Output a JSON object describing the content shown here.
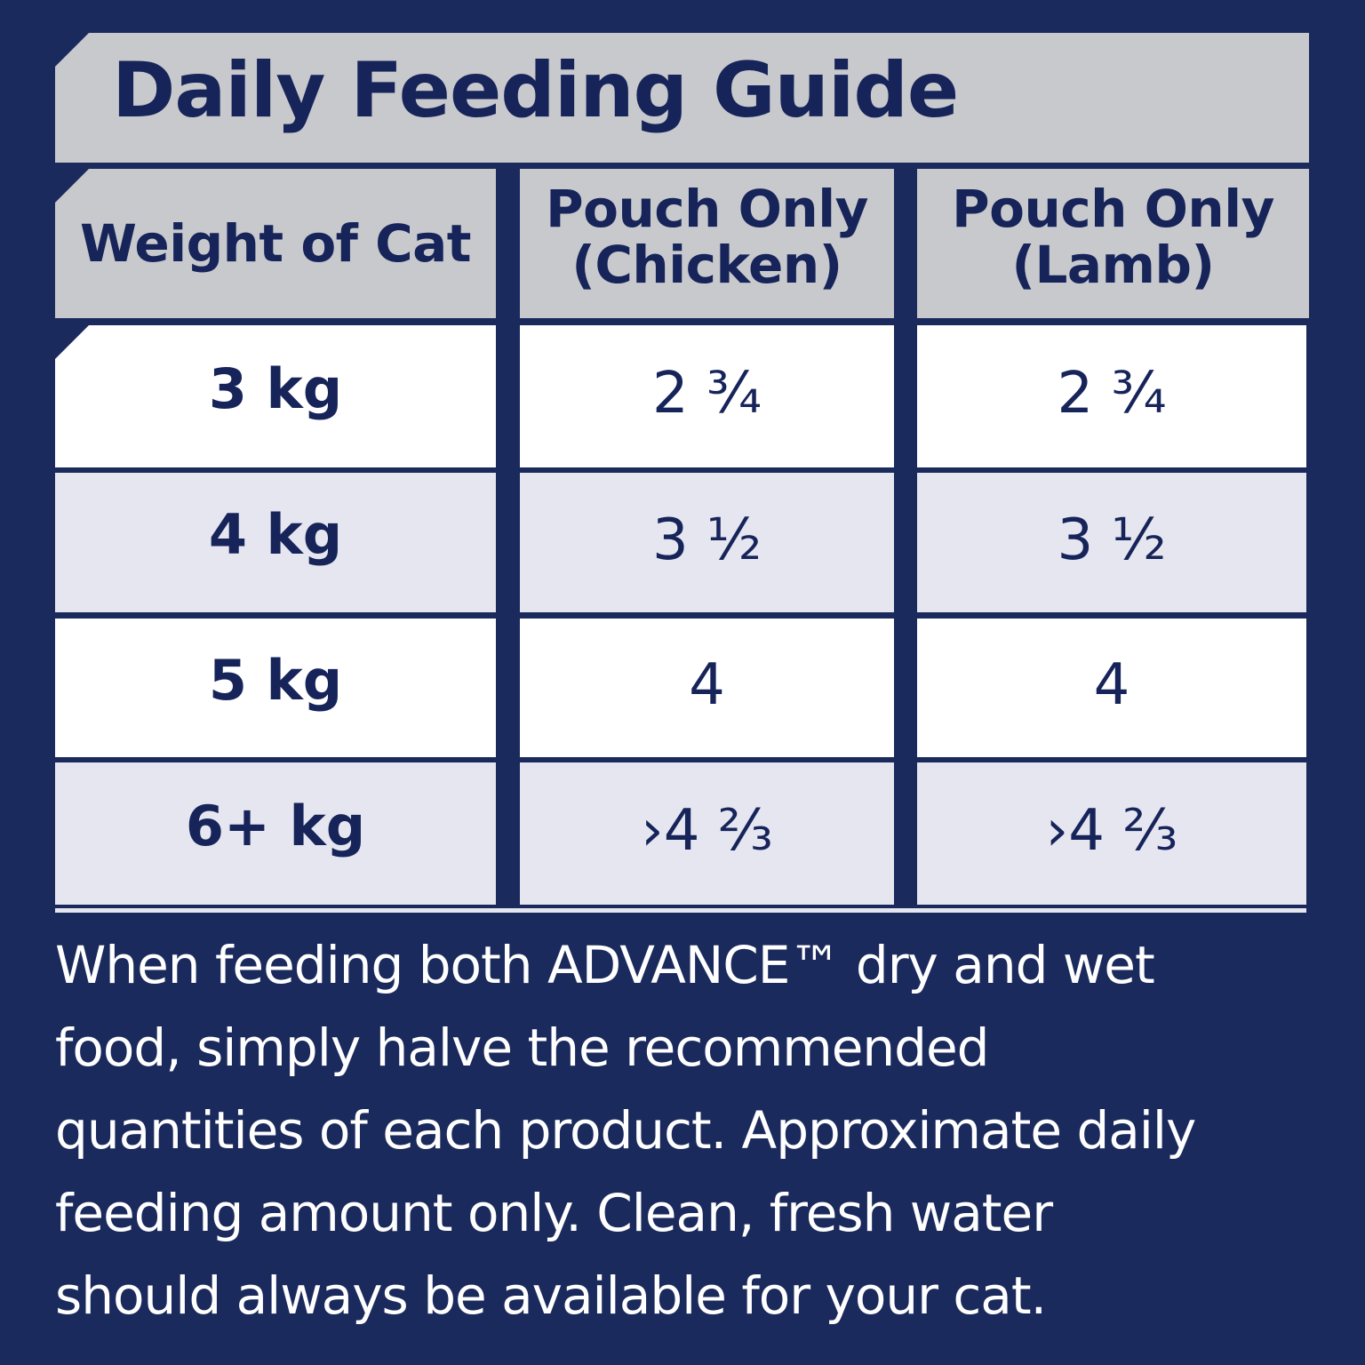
{
  "title": "Daily Feeding Guide",
  "table": {
    "headers": [
      [
        "Weight of Cat"
      ],
      [
        "Pouch Only",
        "(Chicken)"
      ],
      [
        "Pouch Only",
        "(Lamb)"
      ]
    ],
    "rows": [
      {
        "weight": "3 kg",
        "chicken": "2 ¾",
        "lamb": "2 ¾"
      },
      {
        "weight": "4 kg",
        "chicken": "3 ½",
        "lamb": "3 ½"
      },
      {
        "weight": "5 kg",
        "chicken": "4",
        "lamb": "4"
      },
      {
        "weight": "6+ kg",
        "chicken": "›4 ⅔",
        "lamb": "›4 ⅔"
      }
    ]
  },
  "note_lines": [
    "When feeding both ADVANCE™ dry and wet",
    "food, simply halve the recommended",
    "quantities of each product.  Approximate daily",
    "feeding amount only.  Clean, fresh water",
    "should always be available for your cat."
  ],
  "colors": {
    "background": "#1b2a5c",
    "header_fill": "#c8c9cc",
    "row_white": "#ffffff",
    "row_grey": "#e5e6ef",
    "text_navy": "#16245a"
  }
}
